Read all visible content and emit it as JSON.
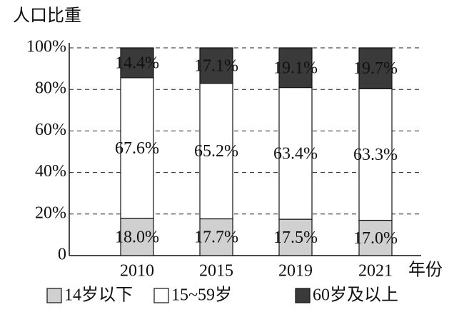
{
  "chart_data": {
    "type": "stacked-bar",
    "y_axis_title": "人口比重",
    "x_axis_title": "年份",
    "categories": [
      "2010",
      "2015",
      "2019",
      "2021"
    ],
    "series": [
      {
        "name": "14岁以下",
        "color": "#d0d0d0",
        "values": [
          18.0,
          17.7,
          17.5,
          17.0
        ],
        "value_labels": [
          "18.0%",
          "17.7%",
          "17.5%",
          "17.0%"
        ]
      },
      {
        "name": "15~59岁",
        "color": "#ffffff",
        "values": [
          67.6,
          65.2,
          63.4,
          63.3
        ],
        "value_labels": [
          "67.6%",
          "65.2%",
          "63.4%",
          "63.3%"
        ]
      },
      {
        "name": "60岁及以上",
        "color": "#3a3a3a",
        "values": [
          14.4,
          17.1,
          19.1,
          19.7
        ],
        "value_labels": [
          "14.4%",
          "17.1%",
          "19.1%",
          "19.7%"
        ]
      }
    ],
    "ylim": [
      0,
      100
    ],
    "yticks": [
      0,
      {
        "value": 20,
        "label": "20%"
      },
      {
        "value": 40,
        "label": "40%"
      },
      {
        "value": 60,
        "label": "60%"
      },
      {
        "value": 80,
        "label": "80%"
      },
      {
        "value": 100,
        "label": "100%"
      }
    ],
    "grid": true
  }
}
